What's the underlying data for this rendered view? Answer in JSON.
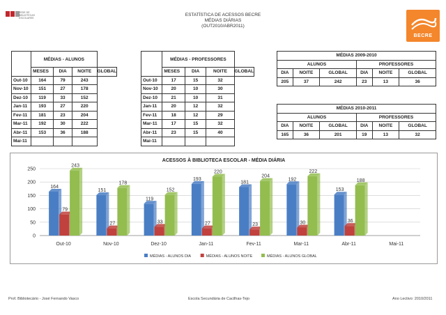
{
  "header": {
    "line1": "ESTATÍSTICA DE ACESSOS BECRE",
    "line2": "MÉDIAS DIÁRIAS",
    "line3": "(OUT2010/ABR2011)",
    "logo_left_text": "REDE DE BIBLIOTECAS ESCOLARES",
    "logo_right_text": "BECRE"
  },
  "alunos_table": {
    "group_title": "MÉDIAS - ALUNOS",
    "row_header": "MESES",
    "col_headers": [
      "DIA",
      "NOITE",
      "GLOBAL"
    ],
    "rows": [
      {
        "mes": "Out-10",
        "dia": "164",
        "noite": "79",
        "global": "243"
      },
      {
        "mes": "Nov-10",
        "dia": "151",
        "noite": "27",
        "global": "178"
      },
      {
        "mes": "Dez-10",
        "dia": "119",
        "noite": "33",
        "global": "152"
      },
      {
        "mes": "Jan-11",
        "dia": "193",
        "noite": "27",
        "global": "220"
      },
      {
        "mes": "Fev-11",
        "dia": "181",
        "noite": "23",
        "global": "204"
      },
      {
        "mes": "Mar-11",
        "dia": "192",
        "noite": "30",
        "global": "222"
      },
      {
        "mes": "Abr-11",
        "dia": "153",
        "noite": "36",
        "global": "188"
      },
      {
        "mes": "Mai-11",
        "dia": "",
        "noite": "",
        "global": ""
      }
    ]
  },
  "professores_table": {
    "group_title": "MÉDIAS - PROFESSORES",
    "row_header": "MESES",
    "col_headers": [
      "DIA",
      "NOITE",
      "GLOBAL"
    ],
    "rows": [
      {
        "mes": "Out-10",
        "dia": "17",
        "noite": "15",
        "global": "32"
      },
      {
        "mes": "Nov-10",
        "dia": "20",
        "noite": "10",
        "global": "30"
      },
      {
        "mes": "Dez-10",
        "dia": "21",
        "noite": "10",
        "global": "31"
      },
      {
        "mes": "Jan-11",
        "dia": "20",
        "noite": "12",
        "global": "32"
      },
      {
        "mes": "Fev-11",
        "dia": "18",
        "noite": "12",
        "global": "29"
      },
      {
        "mes": "Mar-11",
        "dia": "17",
        "noite": "15",
        "global": "32"
      },
      {
        "mes": "Abr-11",
        "dia": "23",
        "noite": "15",
        "global": "40"
      },
      {
        "mes": "Mai-11",
        "dia": "",
        "noite": "",
        "global": ""
      }
    ]
  },
  "medias_2009": {
    "title": "MÉDIAS 2009-2010",
    "alunos_label": "ALUNOS",
    "professores_label": "PROFESSORES",
    "col_headers": [
      "DIA",
      "NOITE",
      "GLOBAL",
      "DIA",
      "NOITE",
      "GLOBAL"
    ],
    "values": [
      "205",
      "37",
      "242",
      "23",
      "13",
      "36"
    ]
  },
  "medias_2010": {
    "title": "MÉDIAS 2010-2011",
    "alunos_label": "ALUNOS",
    "professores_label": "PROFESSORES",
    "col_headers": [
      "DIA",
      "NOITE",
      "GLOBAL",
      "DIA",
      "NOITE",
      "GLOBAL"
    ],
    "values": [
      "165",
      "36",
      "201",
      "19",
      "13",
      "32"
    ]
  },
  "chart_data": {
    "type": "bar",
    "title": "ACESSOS À BIBLIOTECA ESCOLAR - MÉDIA DIÁRIA",
    "categories": [
      "Out-10",
      "Nov-10",
      "Dez-10",
      "Jan-11",
      "Fev-11",
      "Mar-11",
      "Abr-11",
      "Mai-11"
    ],
    "series": [
      {
        "name": "MÉDIAS - ALUNOS DIA",
        "color": "#4a7ec4",
        "values": [
          164,
          151,
          119,
          193,
          181,
          192,
          153,
          null
        ]
      },
      {
        "name": "MÉDIAS - ALUNOS NOITE",
        "color": "#c0413d",
        "values": [
          79,
          27,
          33,
          27,
          23,
          30,
          36,
          null
        ]
      },
      {
        "name": "MÉDIAS - ALUNOS GLOBAL",
        "color": "#93bd4f",
        "values": [
          243,
          178,
          152,
          220,
          204,
          222,
          188,
          null
        ]
      }
    ],
    "yticks": [
      "0",
      "50",
      "100",
      "150",
      "200",
      "250"
    ],
    "ylim": [
      0,
      250
    ],
    "grid": true,
    "legend": "bottom"
  },
  "footer": {
    "left": "Prof. Bibliotecário - José Fernando Vasco",
    "center": "Escola Secundária de Cacilhas-Tejo",
    "right": "Ano Lectivo: 2010/2011"
  }
}
